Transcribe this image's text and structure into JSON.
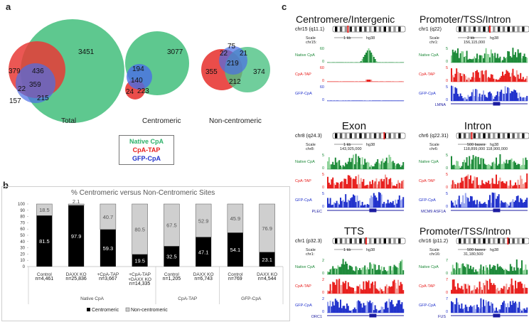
{
  "panels": {
    "a": "a",
    "b": "b",
    "c": "c"
  },
  "colors": {
    "native": "#2db26a",
    "tap": "#e8201e",
    "gfp": "#2233cc",
    "native_fill": "#4cc283",
    "tap_fill": "#e83a36",
    "gfp_fill": "#4a6ee6"
  },
  "venn": {
    "total": {
      "label": "Total",
      "native_only": "3451",
      "tap_only": "379",
      "gfp_only": "157",
      "native_tap": "436",
      "tap_gfp": "22",
      "all": "359",
      "native_gfp": "215"
    },
    "centromeric": {
      "label": "Centromeric",
      "native_only": "3077",
      "gfp_only": "194",
      "all": "140",
      "tap_only": "24",
      "native_tap": "223"
    },
    "noncentromeric": {
      "label": "Non-centromeric",
      "tap_gfp": "75",
      "gfp_native": "21",
      "tap_only": "355",
      "all": "219",
      "native_only": "374",
      "native_tap": "212",
      "tap_gfp2": "22"
    }
  },
  "legend": {
    "native": "Native CpA",
    "tap": "CpA-TAP",
    "gfp": "GFP-CpA"
  },
  "chart_data": {
    "type": "bar",
    "stacked": true,
    "title": "% Centromeric versus Non-Centromeric Sites",
    "ylim": [
      0,
      100
    ],
    "yticks": [
      "0",
      "10",
      "20",
      "30",
      "40",
      "50",
      "60",
      "70",
      "80",
      "90",
      "100"
    ],
    "categories": [
      "Control",
      "DAXX KO",
      "+CpA-TAP",
      "+CpA-TAP +DAXX KO",
      "Control",
      "DAXX KO",
      "Control",
      "DAXX KO"
    ],
    "n_labels": [
      "n=4,461",
      "n=25,836",
      "n=3,667",
      "n=14,335",
      "n=1,205",
      "n=6,743",
      "n=769",
      "n=4,544"
    ],
    "series": [
      {
        "name": "Centromeric",
        "values": [
          81.5,
          97.9,
          59.3,
          19.5,
          32.5,
          47.1,
          54.1,
          23.1
        ],
        "labels": [
          "81.5",
          "97.9",
          "59.3",
          "19.5",
          "32.5",
          "47.1",
          "54.1",
          "23.1"
        ]
      },
      {
        "name": "Non-centromeric",
        "values": [
          18.5,
          2.1,
          40.7,
          80.5,
          67.5,
          52.9,
          45.9,
          76.9
        ],
        "labels": [
          "18.5",
          "2.1",
          "40.7",
          "80.5",
          "67.5",
          "52.9",
          "45.9",
          "76.9"
        ]
      }
    ],
    "groups": [
      {
        "name": "Native CpA",
        "span": [
          0,
          3
        ]
      },
      {
        "name": "CpA-TAP",
        "span": [
          4,
          5
        ]
      },
      {
        "name": "GFP-CpA",
        "span": [
          6,
          7
        ]
      }
    ],
    "legend": [
      "Centromeric",
      "Non-centromeric"
    ]
  },
  "tracks": [
    {
      "title": "Centromere/Intergenic",
      "chr": "chr15 (q11.1)",
      "scale": "1 kb",
      "genome": "hg38",
      "chrpos": "chr15:",
      "coord": "",
      "ymax": [
        "60",
        "60",
        "60"
      ],
      "gene": ""
    },
    {
      "title": "Promoter/TSS/Intron",
      "chr": "chr1 (q22)",
      "scale": "2 kb",
      "genome": "hg38",
      "chrpos": "chr1:",
      "coord": "156,115,000",
      "ymax": [
        "5",
        "5",
        "5"
      ],
      "gene": "LMNA"
    },
    {
      "title": "Exon",
      "chr": "chr8 (q24.3)",
      "scale": "1 kb",
      "genome": "hg38",
      "chrpos": "chr8:",
      "coord": "143,925,000",
      "ymax": [
        "5",
        "5",
        "5"
      ],
      "gene": "PLEC"
    },
    {
      "title": "Intron",
      "chr": "chr6 (q22.31)",
      "scale": "500 bases",
      "genome": "hg38",
      "chrpos": "chr6:",
      "coord": "118,899,000      118,900,000",
      "ymax": [
        "5",
        "5",
        "5"
      ],
      "gene": "MCM9 ASF1A"
    },
    {
      "title": "TTS",
      "chr": "chr1 (p32.3)",
      "scale": "1 kb",
      "genome": "hg38",
      "chrpos": "chr1:",
      "coord": "",
      "ymax": [
        "2",
        "2",
        "2"
      ],
      "gene": "ORC1"
    },
    {
      "title": "Promoter/TSS/Intron",
      "chr": "chr16 (p11.2)",
      "scale": "500 bases",
      "genome": "hg38",
      "chrpos": "chr16:",
      "coord": "31,180,500",
      "ymax": [
        "7",
        "7",
        "7"
      ],
      "gene": "FUS"
    }
  ],
  "track_labels": {
    "native": "Native CpA",
    "tap": "CpA-TAP",
    "gfp": "GFP-CpA",
    "scale": "Scale",
    "zero": "0",
    "band_num": "12"
  }
}
